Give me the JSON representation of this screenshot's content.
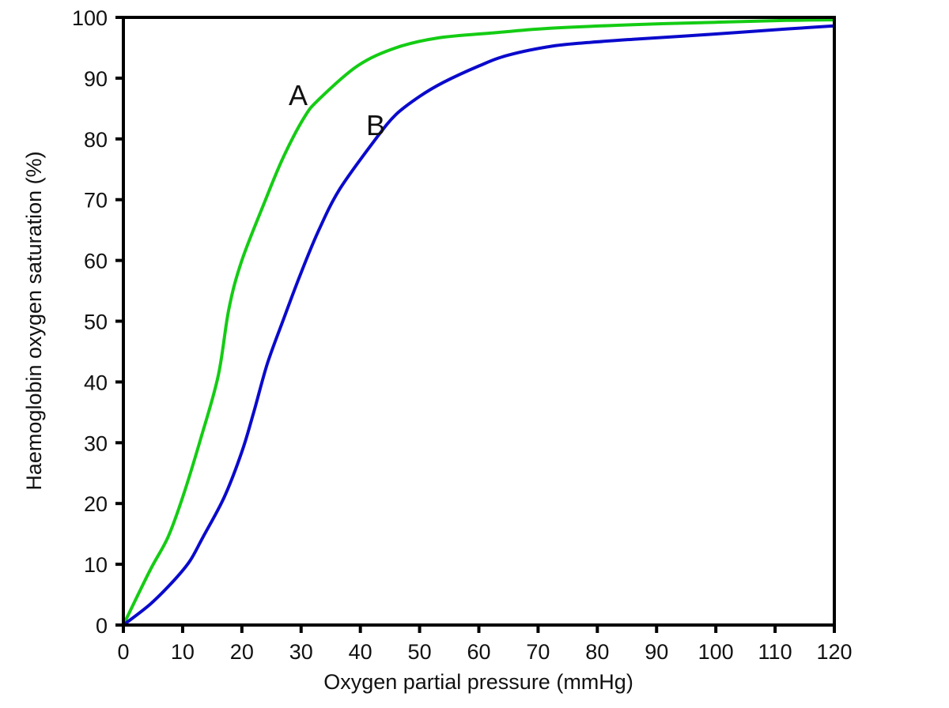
{
  "chart_data": {
    "type": "line",
    "title": "",
    "xlabel": "Oxygen partial pressure (mmHg)",
    "ylabel": "Haemoglobin oxygen saturation (%)",
    "xlim": [
      0,
      120
    ],
    "ylim": [
      0,
      100
    ],
    "xticks": [
      0,
      10,
      20,
      30,
      40,
      50,
      60,
      70,
      80,
      90,
      100,
      110,
      120
    ],
    "yticks": [
      0,
      10,
      20,
      30,
      40,
      50,
      60,
      70,
      80,
      90,
      100
    ],
    "grid": false,
    "legend": "none (curves labelled directly)",
    "series": [
      {
        "name": "A",
        "color": "#14cc14",
        "label_position": [
          30,
          88
        ],
        "x": [
          0,
          4.5,
          7.5,
          10,
          13,
          16,
          17.8,
          20,
          24,
          27,
          30.5,
          33,
          39.5,
          46,
          53,
          63,
          72,
          86,
          100,
          112,
          120
        ],
        "y": [
          0,
          9,
          14.4,
          21,
          30.5,
          41,
          52,
          60,
          70,
          77,
          83.5,
          86.5,
          92,
          95,
          96.6,
          97.5,
          98.2,
          98.8,
          99.2,
          99.5,
          99.6
        ]
      },
      {
        "name": "B",
        "color": "#0a0acc",
        "label_position": [
          43,
          83
        ],
        "x": [
          0,
          4.5,
          8.5,
          11.2,
          13.4,
          17,
          20,
          22,
          24.3,
          27.1,
          30,
          33,
          36.5,
          42.6,
          46,
          50,
          54,
          60,
          65,
          72.6,
          79,
          86,
          99,
          112,
          120
        ],
        "y": [
          0,
          3.4,
          7.3,
          10.5,
          14.4,
          21,
          28.5,
          35,
          43,
          50.5,
          58,
          65,
          71.7,
          80,
          84,
          87,
          89.3,
          92,
          93.8,
          95.3,
          95.9,
          96.4,
          97.2,
          98.1,
          98.6
        ]
      }
    ]
  }
}
